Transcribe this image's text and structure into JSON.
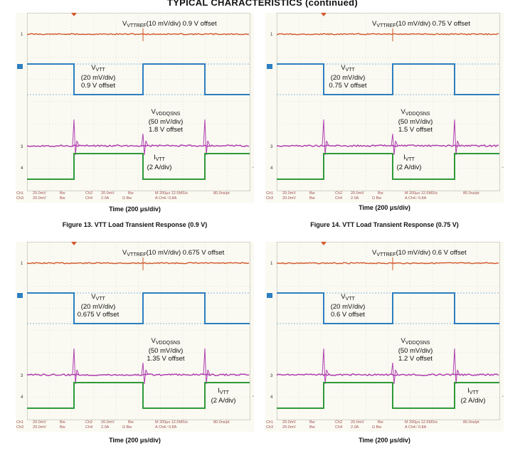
{
  "page_title": "TYPICAL CHARACTERISTICS (continued)",
  "colors": {
    "vttref": "#d2572a",
    "vtt": "#2d7fc1",
    "vddqsns": "#b03fb0",
    "ivtt": "#2f9a3a",
    "grid": "#c9c9bd",
    "background": "#fafaf2"
  },
  "scopes": [
    {
      "vttref": {
        "sym": "V",
        "sub": "VTTREF",
        "rest": "(10 mV/div) 0.9 V offset"
      },
      "vtt": {
        "sym": "V",
        "sub": "VTT",
        "div": "(20 mV/div)",
        "offset": "0.9 V offset"
      },
      "vddq": {
        "sym": "V",
        "sub": "VDDQSNS",
        "div": "(50 mV/div)",
        "offset": "1.8 V offset"
      },
      "ivtt": {
        "sym": "I",
        "sub": "VTT",
        "div": "(2 A/div)"
      },
      "status": {
        "ch1": "Ch1",
        "ch1v": "20.0mV",
        "ch1bw": "Bw",
        "ch2": "Ch2",
        "ch2v": "20.0mV",
        "ch2bw": "Bw",
        "ch3": "Ch3",
        "ch3v": "20.0mV",
        "ch3bw": "Bw",
        "ch4": "Ch4",
        "ch4v": "2.0A",
        "ch4bw": "Ω Bw",
        "timebase": "M 200μs 12.5MS/s",
        "trigger": "A  Ch4  ∕  0.8A",
        "rec": "80.0ns/pt"
      },
      "xaxis": "Time (200 μs/div)",
      "caption": "Figure 13. VTT Load Transient Response (0.9 V)"
    },
    {
      "vttref": {
        "sym": "V",
        "sub": "VTTREF",
        "rest": "(10 mV/div) 0.75 V offset"
      },
      "vtt": {
        "sym": "V",
        "sub": "VTT",
        "div": "(20 mV/div)",
        "offset": "0.75 V offset"
      },
      "vddq": {
        "sym": "V",
        "sub": "VDDQSNS",
        "div": "(50 mV/div)",
        "offset": "1.5 V offset"
      },
      "ivtt": {
        "sym": "I",
        "sub": "VTT",
        "div": "(2 A/div)"
      },
      "status": {
        "ch1": "Ch1",
        "ch1v": "20.0mV",
        "ch1bw": "Bw",
        "ch2": "Ch2",
        "ch2v": "20.0mV",
        "ch2bw": "Bw",
        "ch3": "Ch3",
        "ch3v": "20.0mV",
        "ch3bw": "Bw",
        "ch4": "Ch4",
        "ch4v": "2.0A",
        "ch4bw": "Ω Bw",
        "timebase": "M 200μs 12.5MS/s",
        "trigger": "A  Ch4  ∕  0.8A",
        "rec": "80.0ns/pt"
      },
      "xaxis": "Time (200 μs/div)",
      "caption": "Figure 14. VTT Load Transient Response (0.75 V)"
    },
    {
      "vttref": {
        "sym": "V",
        "sub": "VTTREF",
        "rest": "(10 mV/div) 0.675 V offset"
      },
      "vtt": {
        "sym": "V",
        "sub": "VTT",
        "div": "(20 mV/div)",
        "offset": "0.675 V offset"
      },
      "vddq": {
        "sym": "V",
        "sub": "VDDQSNS",
        "div": "(50 mV/div)",
        "offset": "1.35 V offset"
      },
      "ivtt": {
        "sym": "I",
        "sub": "VTT",
        "div": "(2 A/div)"
      },
      "status": {
        "ch1": "Ch1",
        "ch1v": "20.0mV",
        "ch1bw": "Bw",
        "ch2": "Ch2",
        "ch2v": "20.0mV",
        "ch2bw": "Bw",
        "ch3": "Ch3",
        "ch3v": "20.0mV",
        "ch3bw": "Bw",
        "ch4": "Ch4",
        "ch4v": "2.0A",
        "ch4bw": "Ω Bw",
        "timebase": "M 200μs 12.5MS/s",
        "trigger": "A  Ch4  ∕  0.8A",
        "rec": "80.0ns/pt"
      },
      "xaxis": "Time (200 μs/div)",
      "caption": ""
    },
    {
      "vttref": {
        "sym": "V",
        "sub": "VTTREF",
        "rest": "(10 mV/div) 0.6 V offset"
      },
      "vtt": {
        "sym": "V",
        "sub": "VTT",
        "div": "(20 mV/div)",
        "offset": "0.6 V offset"
      },
      "vddq": {
        "sym": "V",
        "sub": "VDDQSNS",
        "div": "(50 mV/div)",
        "offset": "1.2 V offset"
      },
      "ivtt": {
        "sym": "I",
        "sub": "VTT",
        "div": "(2 A/div)"
      },
      "status": {
        "ch1": "Ch1",
        "ch1v": "20.0mV",
        "ch1bw": "Bw",
        "ch2": "Ch2",
        "ch2v": "20.0mV",
        "ch2bw": "Bw",
        "ch3": "Ch3",
        "ch3v": "20.0mV",
        "ch3bw": "Bw",
        "ch4": "Ch4",
        "ch4v": "2.0A",
        "ch4bw": "Ω Bw",
        "timebase": "M 200μs 12.5MS/s",
        "trigger": "A  Ch4  ∕  0.8A",
        "rec": "80.0ns/pt"
      },
      "xaxis": "Time (200 μs/div)",
      "caption": ""
    }
  ]
}
